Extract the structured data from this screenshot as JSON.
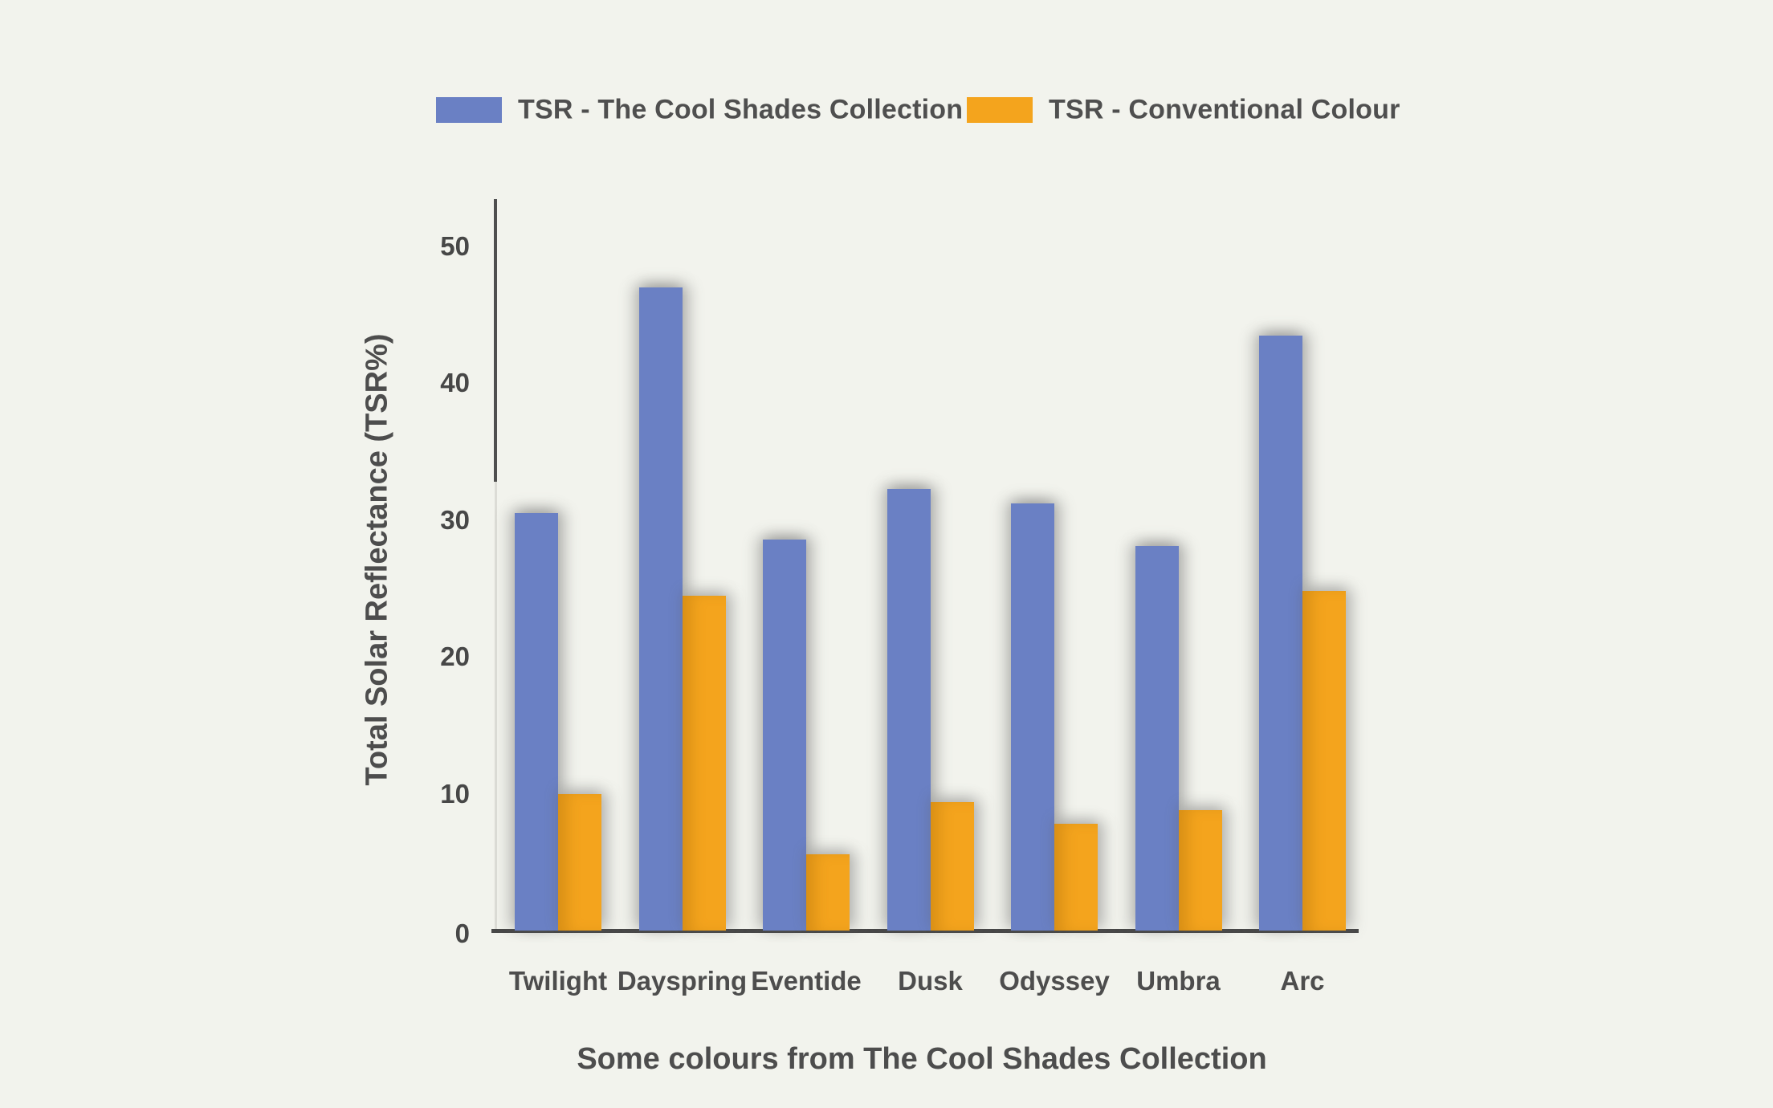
{
  "colors": {
    "background": "#F2F3ED",
    "cool_shades_blue": "#6A80C4",
    "conventional_orange": "#F4A41D",
    "axis_dark": "#484848",
    "axis_light": "#DCDCD6",
    "text": "#4D4D4D"
  },
  "legend": {
    "items": [
      {
        "label": "TSR - The Cool Shades Collection",
        "color": "#6A80C4"
      },
      {
        "label": "TSR - Conventional Colour",
        "color": "#F4A41D"
      }
    ]
  },
  "chart_data": {
    "type": "bar",
    "title": "",
    "xlabel": "Some colours from The Cool Shades Collection",
    "ylabel": "Total Solar Reflectance (TSR%)",
    "categories": [
      "Twilight",
      "Dayspring",
      "Eventide",
      "Dusk",
      "Odyssey",
      "Umbra",
      "Arc"
    ],
    "series": [
      {
        "name": "TSR - The Cool Shades Collection",
        "values": [
          30.5,
          47,
          28.6,
          32.3,
          31.2,
          28.1,
          43.5
        ]
      },
      {
        "name": "TSR - Conventional Colour",
        "values": [
          10,
          24.5,
          5.6,
          9.4,
          7.8,
          8.8,
          24.8
        ]
      }
    ],
    "yticks": [
      0,
      10,
      20,
      30,
      40,
      50
    ],
    "ylim": [
      0,
      53.5
    ],
    "grid": "off",
    "legend_position": "top"
  }
}
